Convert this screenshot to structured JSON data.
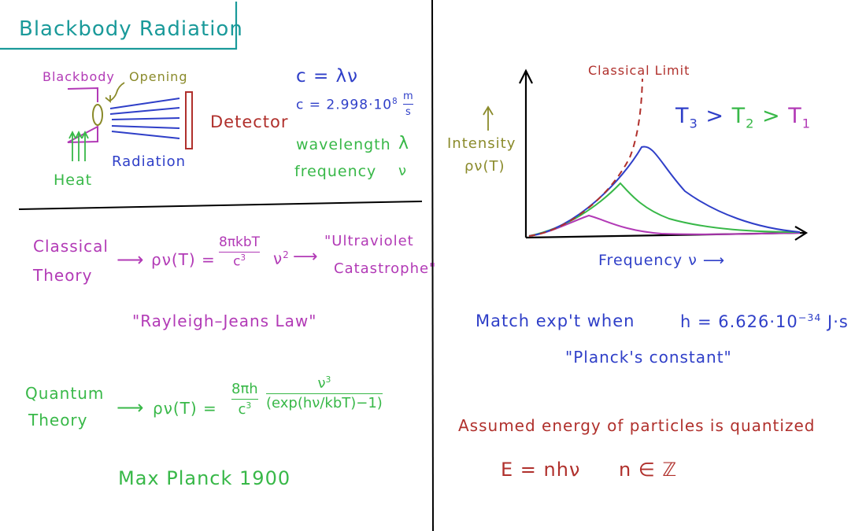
{
  "title": "Blackbody Radiation",
  "apparatus": {
    "blackbody_label": "Blackbody",
    "opening_label": "Opening",
    "detector_label": "Detector",
    "radiation_label": "Radiation",
    "heat_label": "Heat"
  },
  "relations": {
    "wave_eq": "c = λν",
    "c_value_prefix": "c = 2.998·10",
    "c_exp": "8",
    "c_unit_num": "m",
    "c_unit_den": "s",
    "wavelength_label": "wavelength",
    "wavelength_symbol": "λ",
    "frequency_label": "frequency",
    "frequency_symbol": "ν"
  },
  "graph": {
    "classical_limit_label": "Classical Limit",
    "temp_order": [
      "T",
      "3",
      ">",
      "T",
      "2",
      ">",
      "T",
      "1"
    ],
    "ylabel_line1": "Intensity",
    "ylabel_line2": "ρν(T)",
    "xlabel": "Frequency  ν ⟶",
    "colors": {
      "t1": "#b23ab6",
      "t2": "#38b848",
      "t3": "#2f3fc8",
      "classical": "#b0302c"
    }
  },
  "classical": {
    "label_line1": "Classical",
    "label_line2": "Theory",
    "arrow": "⟶",
    "lhs": "ρν(T) =",
    "numerator": "8πkbT",
    "denominator": "c",
    "denominator_exp": "3",
    "factor": "ν",
    "factor_exp": "2",
    "result_line1": "\"Ultraviolet",
    "result_line2": "Catastrophe\"",
    "law_name": "\"Rayleigh–Jeans Law\""
  },
  "quantum": {
    "label_line1": "Quantum",
    "label_line2": "Theory",
    "arrow": "⟶",
    "lhs": "ρν(T) =",
    "numerator1": "8πh",
    "denominator1": "c",
    "denominator1_exp": "3",
    "numerator2": "ν",
    "numerator2_exp": "3",
    "denominator2": "(exp(hν/kbT)−1)",
    "attribution": "Max Planck 1900"
  },
  "planck": {
    "match_text": "Match exp't  when",
    "h_prefix": "h = 6.626·10",
    "h_exp": "−34",
    "h_unit": "J·s",
    "constant_name": "\"Planck's constant\""
  },
  "quantization": {
    "statement": "Assumed energy of particles is quantized",
    "energy_eq": "E = nhν",
    "n_domain": "n ∈ ℤ"
  }
}
